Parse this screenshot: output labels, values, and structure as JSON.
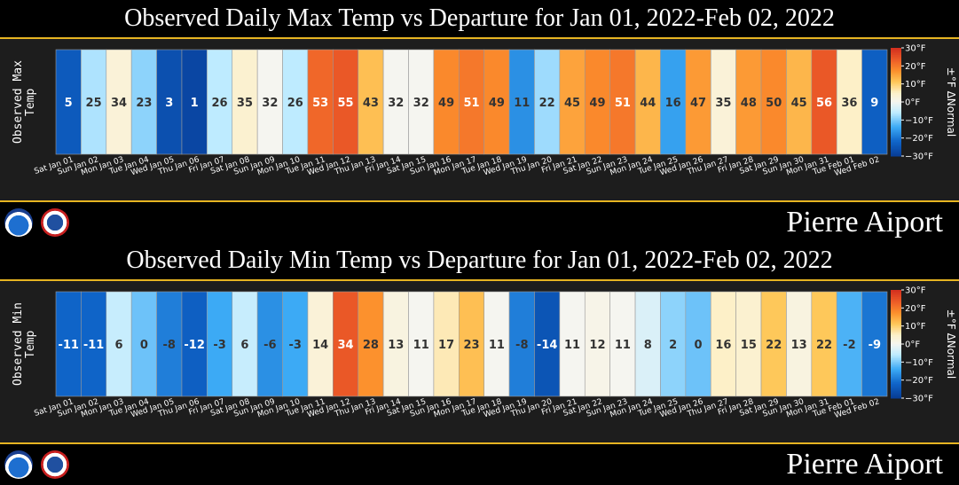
{
  "chart_data": [
    {
      "type": "heatmap",
      "title": "Observed Daily Max Temp vs Departure for Jan 01, 2022-Feb 02, 2022",
      "ylabel": "Observed Max Temp",
      "colorbar_label": "±°F ΔNormal",
      "colorbar_ticks": [
        "30°F",
        "20°F",
        "10°F",
        "0°F",
        "−10°F",
        "−20°F",
        "−30°F"
      ],
      "colorbar_range": [
        -30,
        30
      ],
      "station": "Pierre Aiport",
      "categories": [
        "Sat Jan 01",
        "Sun Jan 02",
        "Mon Jan 03",
        "Tue Jan 04",
        "Wed Jan 05",
        "Thu Jan 06",
        "Fri Jan 07",
        "Sat Jan 08",
        "Sun Jan 09",
        "Mon Jan 10",
        "Tue Jan 11",
        "Wed Jan 12",
        "Thu Jan 13",
        "Fri Jan 14",
        "Sat Jan 15",
        "Sun Jan 16",
        "Mon Jan 17",
        "Tue Jan 18",
        "Wed Jan 19",
        "Thu Jan 20",
        "Fri Jan 21",
        "Sat Jan 22",
        "Sun Jan 23",
        "Mon Jan 24",
        "Tue Jan 25",
        "Wed Jan 26",
        "Thu Jan 27",
        "Fri Jan 28",
        "Sat Jan 29",
        "Sun Jan 30",
        "Mon Jan 31",
        "Tue Feb 01",
        "Wed Feb 02"
      ],
      "values": [
        5,
        25,
        34,
        23,
        3,
        1,
        26,
        35,
        32,
        26,
        53,
        55,
        43,
        32,
        32,
        49,
        51,
        49,
        11,
        22,
        45,
        49,
        51,
        44,
        16,
        47,
        35,
        48,
        50,
        45,
        56,
        36,
        9
      ],
      "departures": [
        -24,
        -7,
        3,
        -9,
        -26,
        -28,
        -6,
        4,
        0,
        -6,
        22,
        24,
        12,
        0,
        0,
        18,
        20,
        18,
        -17,
        -8,
        15,
        18,
        20,
        13,
        -15,
        16,
        3,
        16,
        18,
        13,
        24,
        5,
        -23
      ]
    },
    {
      "type": "heatmap",
      "title": "Observed Daily Min Temp vs Departure for Jan 01, 2022-Feb 02, 2022",
      "ylabel": "Observed Min Temp",
      "colorbar_label": "±°F ΔNormal",
      "colorbar_ticks": [
        "30°F",
        "20°F",
        "10°F",
        "0°F",
        "−10°F",
        "−20°F",
        "−30°F"
      ],
      "colorbar_range": [
        -30,
        30
      ],
      "station": "Pierre Aiport",
      "categories": [
        "Sat Jan 01",
        "Sun Jan 02",
        "Mon Jan 03",
        "Tue Jan 04",
        "Wed Jan 05",
        "Thu Jan 06",
        "Fri Jan 07",
        "Sat Jan 08",
        "Sun Jan 09",
        "Mon Jan 10",
        "Tue Jan 11",
        "Wed Jan 12",
        "Thu Jan 13",
        "Fri Jan 14",
        "Sat Jan 15",
        "Sun Jan 16",
        "Mon Jan 17",
        "Tue Jan 18",
        "Wed Jan 19",
        "Thu Jan 20",
        "Fri Jan 21",
        "Sat Jan 22",
        "Sun Jan 23",
        "Mon Jan 24",
        "Tue Jan 25",
        "Wed Jan 26",
        "Thu Jan 27",
        "Fri Jan 28",
        "Sat Jan 29",
        "Sun Jan 30",
        "Mon Jan 31",
        "Tue Feb 01",
        "Wed Feb 02"
      ],
      "values": [
        -11,
        -11,
        6,
        0,
        -8,
        -12,
        -3,
        6,
        -6,
        -3,
        14,
        34,
        28,
        13,
        11,
        17,
        23,
        11,
        -8,
        -14,
        11,
        12,
        11,
        8,
        2,
        0,
        16,
        15,
        22,
        13,
        22,
        -2,
        -9
      ],
      "departures": [
        -22,
        -22,
        -5,
        -11,
        -19,
        -23,
        -14,
        -5,
        -17,
        -14,
        3,
        24,
        17,
        2,
        0,
        6,
        12,
        0,
        -19,
        -25,
        0,
        1,
        0,
        -3,
        -9,
        -11,
        5,
        4,
        11,
        2,
        11,
        -13,
        -20
      ]
    }
  ],
  "logos": [
    "noaa-logo",
    "nws-logo"
  ]
}
